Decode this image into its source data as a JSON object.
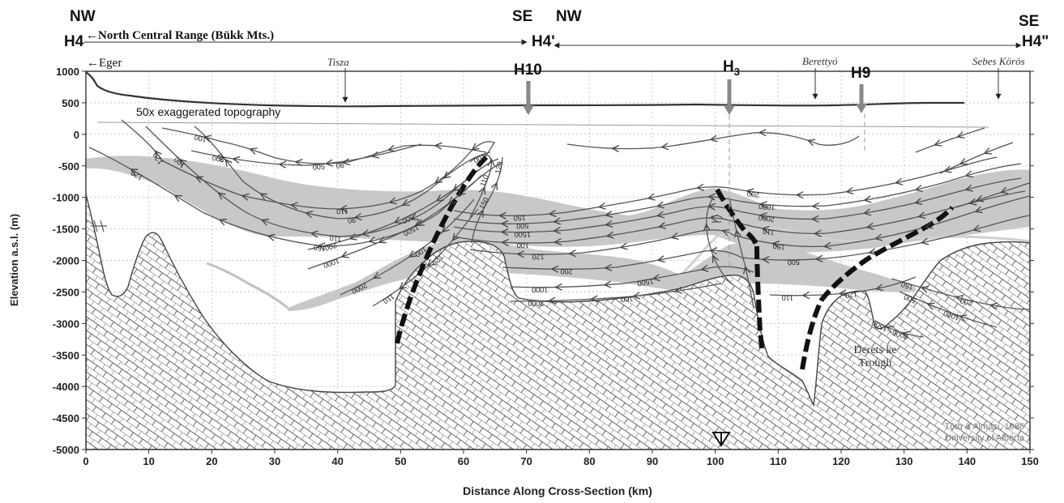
{
  "header": {
    "nw_left": "NW",
    "se_mid": "SE",
    "nw_mid": "NW",
    "se_right": "SE",
    "h4": "H4",
    "h4_prime": "H4'",
    "h4_double": "H4\"",
    "range_label": "←North Central Range (Bükk Mts.)"
  },
  "places": {
    "eger": "←Eger",
    "tisza": "Tisza",
    "berettyo": "Berettyó",
    "sebes_koros": "Sebes Körös"
  },
  "wells": {
    "h10": "H10",
    "h3_main": "H",
    "h3_sub": "3",
    "h9": "H9"
  },
  "topo_note": "50x exaggerated topography",
  "trough": {
    "line1": "Derets ke",
    "line2": "Trough"
  },
  "credit": {
    "line1": "Tóth & Almási, 1986",
    "line2": "University of Alberta"
  },
  "axes": {
    "xlabel": "Distance Along Cross-Section (km)",
    "ylabel": "Elevation a.s.l. (m)",
    "x_ticks": [
      0,
      10,
      20,
      30,
      40,
      50,
      60,
      70,
      80,
      90,
      100,
      110,
      120,
      130,
      140,
      150
    ],
    "y_ticks": [
      1000,
      500,
      0,
      -500,
      -1000,
      -1500,
      -2000,
      -2500,
      -3000,
      -3500,
      -4000,
      -4500,
      -5000
    ],
    "x_range": [
      0,
      150
    ],
    "y_range": [
      -5000,
      1000
    ]
  },
  "contour_labels": [
    "120",
    "110",
    "100",
    "90",
    "90",
    "90",
    "100",
    "110",
    "120",
    "150",
    "200",
    "500",
    "1000",
    "1500",
    "2000",
    "100",
    "110",
    "120",
    "150",
    "200",
    "500",
    "1000",
    "1500",
    "2000",
    "100",
    "110",
    "120",
    "150",
    "200",
    "500",
    "1000",
    "1500",
    "2000",
    "100",
    "110",
    "120",
    "150",
    "200",
    "500",
    "1000",
    "1500",
    "2000",
    "100",
    "110",
    "120",
    "150",
    "200",
    "500"
  ],
  "colors": {
    "basement_fill": "#ffffff",
    "hatch": "#555555",
    "shade": "#c8c8c8",
    "fault": "#111111"
  }
}
